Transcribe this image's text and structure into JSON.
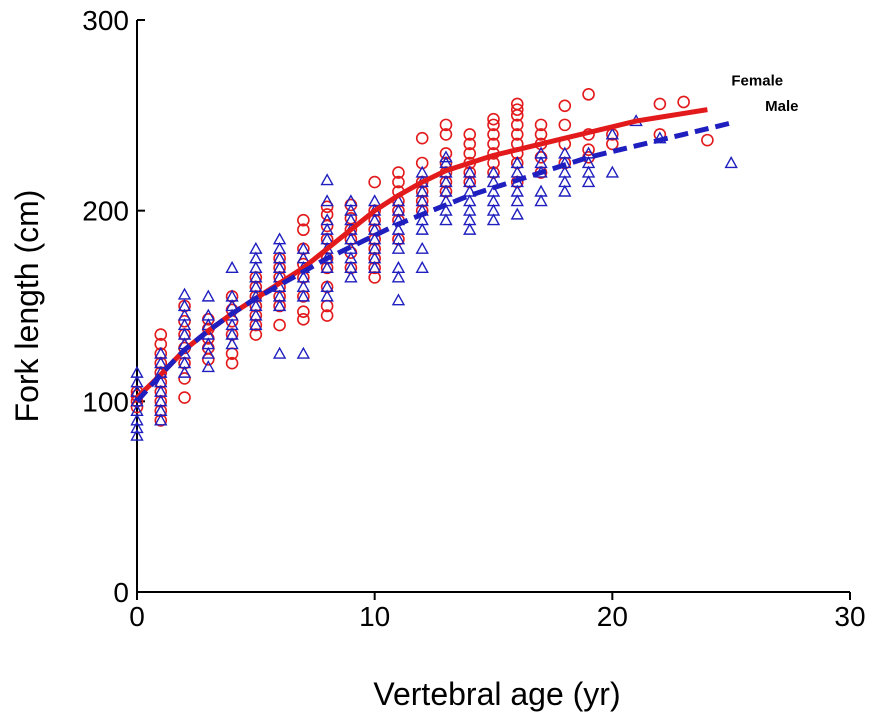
{
  "chart_data": {
    "type": "scatter",
    "xlabel": "Vertebral age (yr)",
    "ylabel": "Fork length (cm)",
    "xlim": [
      0,
      30
    ],
    "ylim": [
      0,
      300
    ],
    "xticks": [
      0,
      10,
      20,
      30
    ],
    "yticks": [
      0,
      100,
      200,
      300
    ],
    "xtick_labels": [
      "0",
      "10",
      "20",
      "30"
    ],
    "ytick_labels": [
      "0",
      "100",
      "200",
      "300"
    ],
    "grid": false,
    "legend": "labels at curve ends",
    "series": [
      {
        "name": "Female",
        "color": "#e31a1c",
        "marker": "circle",
        "points": [
          [
            0,
            97
          ],
          [
            0,
            100
          ],
          [
            0,
            103
          ],
          [
            0,
            105
          ],
          [
            1,
            90
          ],
          [
            1,
            95
          ],
          [
            1,
            100
          ],
          [
            1,
            105
          ],
          [
            1,
            110
          ],
          [
            1,
            115
          ],
          [
            1,
            120
          ],
          [
            1,
            125
          ],
          [
            1,
            130
          ],
          [
            1,
            135
          ],
          [
            2,
            102
          ],
          [
            2,
            112
          ],
          [
            2,
            120
          ],
          [
            2,
            128
          ],
          [
            2,
            135
          ],
          [
            2,
            142
          ],
          [
            2,
            150
          ],
          [
            3,
            122
          ],
          [
            3,
            128
          ],
          [
            3,
            133
          ],
          [
            3,
            138
          ],
          [
            3,
            143
          ],
          [
            4,
            120
          ],
          [
            4,
            125
          ],
          [
            4,
            135
          ],
          [
            4,
            142
          ],
          [
            4,
            148
          ],
          [
            4,
            155
          ],
          [
            5,
            135
          ],
          [
            5,
            140
          ],
          [
            5,
            145
          ],
          [
            5,
            150
          ],
          [
            5,
            155
          ],
          [
            5,
            160
          ],
          [
            5,
            165
          ],
          [
            6,
            140
          ],
          [
            6,
            150
          ],
          [
            6,
            155
          ],
          [
            6,
            160
          ],
          [
            6,
            165
          ],
          [
            6,
            170
          ],
          [
            6,
            175
          ],
          [
            7,
            143
          ],
          [
            7,
            147
          ],
          [
            7,
            155
          ],
          [
            7,
            165
          ],
          [
            7,
            172
          ],
          [
            7,
            180
          ],
          [
            7,
            190
          ],
          [
            7,
            195
          ],
          [
            8,
            145
          ],
          [
            8,
            150
          ],
          [
            8,
            160
          ],
          [
            8,
            170
          ],
          [
            8,
            175
          ],
          [
            8,
            185
          ],
          [
            8,
            192
          ],
          [
            8,
            198
          ],
          [
            8,
            202
          ],
          [
            9,
            170
          ],
          [
            9,
            178
          ],
          [
            9,
            185
          ],
          [
            9,
            190
          ],
          [
            9,
            196
          ],
          [
            9,
            203
          ],
          [
            10,
            165
          ],
          [
            10,
            170
          ],
          [
            10,
            175
          ],
          [
            10,
            180
          ],
          [
            10,
            185
          ],
          [
            10,
            190
          ],
          [
            10,
            195
          ],
          [
            10,
            200
          ],
          [
            10,
            215
          ],
          [
            11,
            185
          ],
          [
            11,
            195
          ],
          [
            11,
            200
          ],
          [
            11,
            205
          ],
          [
            11,
            210
          ],
          [
            11,
            215
          ],
          [
            11,
            220
          ],
          [
            12,
            200
          ],
          [
            12,
            205
          ],
          [
            12,
            210
          ],
          [
            12,
            215
          ],
          [
            12,
            225
          ],
          [
            12,
            238
          ],
          [
            13,
            210
          ],
          [
            13,
            215
          ],
          [
            13,
            220
          ],
          [
            13,
            225
          ],
          [
            13,
            230
          ],
          [
            13,
            240
          ],
          [
            13,
            245
          ],
          [
            14,
            215
          ],
          [
            14,
            220
          ],
          [
            14,
            225
          ],
          [
            14,
            230
          ],
          [
            14,
            235
          ],
          [
            14,
            240
          ],
          [
            15,
            220
          ],
          [
            15,
            225
          ],
          [
            15,
            230
          ],
          [
            15,
            235
          ],
          [
            15,
            240
          ],
          [
            15,
            245
          ],
          [
            15,
            248
          ],
          [
            16,
            215
          ],
          [
            16,
            225
          ],
          [
            16,
            230
          ],
          [
            16,
            235
          ],
          [
            16,
            240
          ],
          [
            16,
            245
          ],
          [
            16,
            250
          ],
          [
            16,
            253
          ],
          [
            16,
            256
          ],
          [
            17,
            220
          ],
          [
            17,
            228
          ],
          [
            17,
            235
          ],
          [
            17,
            240
          ],
          [
            17,
            245
          ],
          [
            18,
            225
          ],
          [
            18,
            235
          ],
          [
            18,
            245
          ],
          [
            18,
            255
          ],
          [
            19,
            228
          ],
          [
            19,
            232
          ],
          [
            19,
            240
          ],
          [
            19,
            261
          ],
          [
            20,
            235
          ],
          [
            20,
            240
          ],
          [
            22,
            240
          ],
          [
            22,
            256
          ],
          [
            23,
            257
          ],
          [
            24,
            237
          ]
        ]
      },
      {
        "name": "Male",
        "color": "#1f1fbf",
        "marker": "triangle",
        "points": [
          [
            0,
            82
          ],
          [
            0,
            86
          ],
          [
            0,
            90
          ],
          [
            0,
            95
          ],
          [
            0,
            100
          ],
          [
            0,
            105
          ],
          [
            0,
            110
          ],
          [
            0,
            115
          ],
          [
            1,
            90
          ],
          [
            1,
            95
          ],
          [
            1,
            100
          ],
          [
            1,
            105
          ],
          [
            1,
            110
          ],
          [
            1,
            115
          ],
          [
            1,
            120
          ],
          [
            1,
            125
          ],
          [
            2,
            115
          ],
          [
            2,
            120
          ],
          [
            2,
            125
          ],
          [
            2,
            130
          ],
          [
            2,
            135
          ],
          [
            2,
            140
          ],
          [
            2,
            145
          ],
          [
            2,
            150
          ],
          [
            2,
            156
          ],
          [
            3,
            118
          ],
          [
            3,
            125
          ],
          [
            3,
            130
          ],
          [
            3,
            135
          ],
          [
            3,
            140
          ],
          [
            3,
            145
          ],
          [
            3,
            155
          ],
          [
            4,
            130
          ],
          [
            4,
            135
          ],
          [
            4,
            140
          ],
          [
            4,
            145
          ],
          [
            4,
            150
          ],
          [
            4,
            155
          ],
          [
            4,
            170
          ],
          [
            5,
            140
          ],
          [
            5,
            145
          ],
          [
            5,
            150
          ],
          [
            5,
            155
          ],
          [
            5,
            160
          ],
          [
            5,
            165
          ],
          [
            5,
            170
          ],
          [
            5,
            175
          ],
          [
            5,
            180
          ],
          [
            6,
            125
          ],
          [
            6,
            150
          ],
          [
            6,
            155
          ],
          [
            6,
            160
          ],
          [
            6,
            165
          ],
          [
            6,
            170
          ],
          [
            6,
            175
          ],
          [
            6,
            180
          ],
          [
            6,
            185
          ],
          [
            7,
            125
          ],
          [
            7,
            155
          ],
          [
            7,
            160
          ],
          [
            7,
            165
          ],
          [
            7,
            170
          ],
          [
            7,
            175
          ],
          [
            7,
            180
          ],
          [
            8,
            155
          ],
          [
            8,
            160
          ],
          [
            8,
            170
          ],
          [
            8,
            175
          ],
          [
            8,
            180
          ],
          [
            8,
            185
          ],
          [
            8,
            190
          ],
          [
            8,
            195
          ],
          [
            8,
            205
          ],
          [
            8,
            216
          ],
          [
            9,
            165
          ],
          [
            9,
            170
          ],
          [
            9,
            175
          ],
          [
            9,
            180
          ],
          [
            9,
            185
          ],
          [
            9,
            190
          ],
          [
            9,
            195
          ],
          [
            9,
            200
          ],
          [
            9,
            205
          ],
          [
            10,
            170
          ],
          [
            10,
            175
          ],
          [
            10,
            180
          ],
          [
            10,
            185
          ],
          [
            10,
            190
          ],
          [
            10,
            195
          ],
          [
            10,
            200
          ],
          [
            10,
            205
          ],
          [
            11,
            153
          ],
          [
            11,
            165
          ],
          [
            11,
            170
          ],
          [
            11,
            180
          ],
          [
            11,
            185
          ],
          [
            11,
            190
          ],
          [
            11,
            195
          ],
          [
            11,
            200
          ],
          [
            11,
            205
          ],
          [
            12,
            170
          ],
          [
            12,
            180
          ],
          [
            12,
            190
          ],
          [
            12,
            195
          ],
          [
            12,
            200
          ],
          [
            12,
            205
          ],
          [
            12,
            210
          ],
          [
            12,
            215
          ],
          [
            12,
            220
          ],
          [
            13,
            195
          ],
          [
            13,
            200
          ],
          [
            13,
            205
          ],
          [
            13,
            210
          ],
          [
            13,
            215
          ],
          [
            13,
            220
          ],
          [
            13,
            225
          ],
          [
            13,
            228
          ],
          [
            14,
            190
          ],
          [
            14,
            195
          ],
          [
            14,
            200
          ],
          [
            14,
            205
          ],
          [
            14,
            210
          ],
          [
            14,
            215
          ],
          [
            14,
            220
          ],
          [
            15,
            195
          ],
          [
            15,
            200
          ],
          [
            15,
            205
          ],
          [
            15,
            210
          ],
          [
            15,
            215
          ],
          [
            15,
            220
          ],
          [
            16,
            198
          ],
          [
            16,
            205
          ],
          [
            16,
            210
          ],
          [
            16,
            215
          ],
          [
            16,
            220
          ],
          [
            16,
            225
          ],
          [
            17,
            205
          ],
          [
            17,
            210
          ],
          [
            17,
            220
          ],
          [
            17,
            225
          ],
          [
            17,
            230
          ],
          [
            18,
            210
          ],
          [
            18,
            215
          ],
          [
            18,
            220
          ],
          [
            18,
            225
          ],
          [
            18,
            230
          ],
          [
            19,
            215
          ],
          [
            19,
            220
          ],
          [
            19,
            225
          ],
          [
            19,
            230
          ],
          [
            20,
            220
          ],
          [
            20,
            240
          ],
          [
            21,
            247
          ],
          [
            22,
            238
          ],
          [
            25,
            225
          ]
        ]
      }
    ],
    "fits": [
      {
        "name": "Female",
        "color": "#e31a1c",
        "style": "solid",
        "x": [
          0,
          1,
          2,
          3,
          4,
          5,
          6,
          7,
          8,
          9,
          10,
          11,
          12,
          13,
          14,
          15,
          16,
          17,
          18,
          19,
          20,
          21,
          22,
          23,
          24
        ],
        "y": [
          102,
          114,
          127,
          137,
          146,
          154,
          162,
          170,
          180,
          190,
          200,
          208,
          215,
          221,
          225,
          229,
          232,
          235,
          238,
          241,
          244,
          247,
          249,
          251,
          253
        ]
      },
      {
        "name": "Male",
        "color": "#1f1fbf",
        "style": "dashed",
        "x": [
          0,
          1,
          2,
          3,
          4,
          5,
          6,
          7,
          8,
          9,
          10,
          11,
          12,
          13,
          14,
          15,
          16,
          17,
          18,
          19,
          20,
          21,
          22,
          23,
          24,
          25
        ],
        "y": [
          100,
          114,
          127,
          137,
          146,
          154,
          161,
          168,
          175,
          181,
          187,
          193,
          198,
          203,
          208,
          212,
          216,
          220,
          224,
          228,
          231,
          234,
          237,
          240,
          243,
          246
        ]
      }
    ]
  }
}
